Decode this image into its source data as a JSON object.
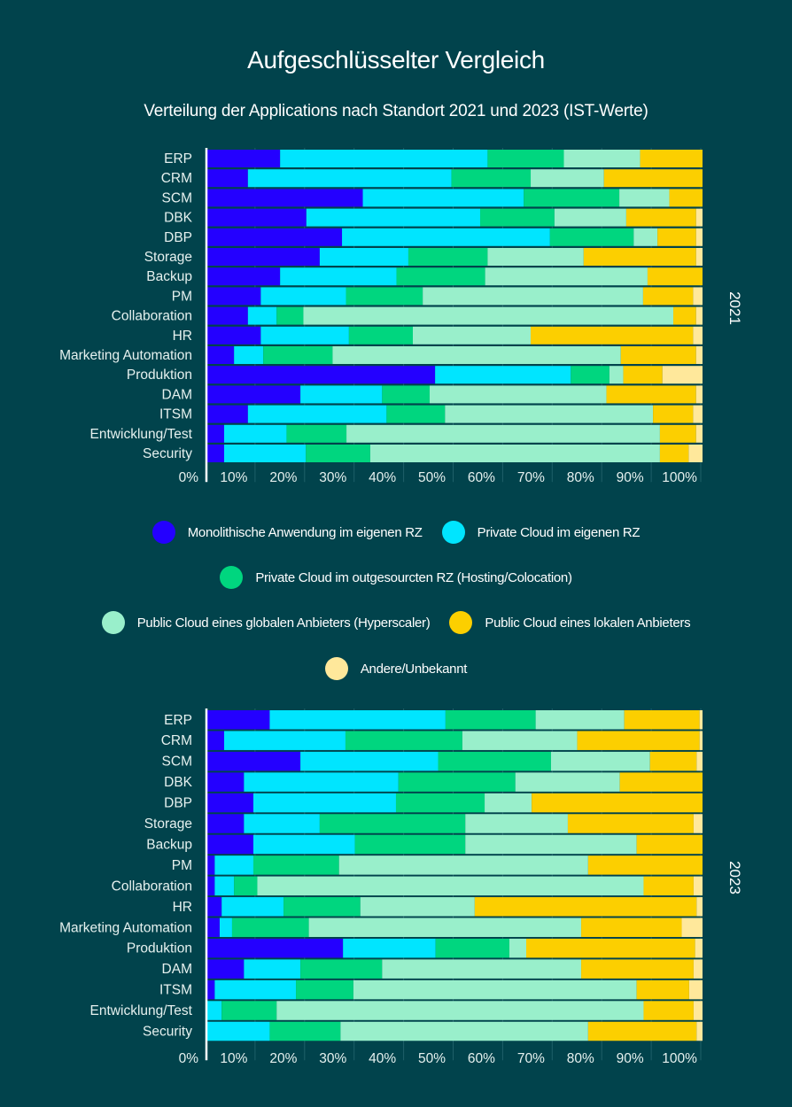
{
  "header": {
    "title": "Aufgeschlüsselter Vergleich",
    "subtitle": "Verteilung der Applications nach Standort 2021 und 2023 (IST-Werte)"
  },
  "colors": {
    "Monolithische Anwendung im eigenen RZ": "#2400ff",
    "Private Cloud im eigenen RZ": "#00e5ff",
    "Private Cloud im outgesourcten RZ (Hosting/Colocation)": "#00d67f",
    "Public Cloud eines globalen Anbieters (Hyperscaler)": "#99efcb",
    "Public Cloud eines lokalen Anbieters": "#fccf00",
    "Andere/Unbekannt": "#ffe89b"
  },
  "legend": {
    "rows": [
      [
        "Monolithische Anwendung im eigenen RZ",
        "Private Cloud im eigenen RZ"
      ],
      [
        "Private Cloud im outgesourcten RZ (Hosting/Colocation)"
      ],
      [
        "Public Cloud eines globalen Anbieters (Hyperscaler)",
        "Public Cloud eines lokalen Anbieters"
      ],
      [
        "Andere/Unbekannt"
      ]
    ]
  },
  "chart_data": [
    {
      "type": "bar",
      "orientation": "horizontal",
      "stacked": true,
      "title": "2021",
      "year_label": "2021",
      "xlabel": "",
      "ylabel": "",
      "xlim": [
        0,
        100
      ],
      "x_unit": "%",
      "tick_labels": [
        "0%",
        "10%",
        "20%",
        "30%",
        "40%",
        "50%",
        "60%",
        "70%",
        "80%",
        "90%",
        "100%"
      ],
      "grid": true,
      "categories": [
        "ERP",
        "CRM",
        "SCM",
        "DBK",
        "DBP",
        "Storage",
        "Backup",
        "PM",
        "Collaboration",
        "HR",
        "Marketing Automation",
        "Produktion",
        "DAM",
        "ITSM",
        "Entwicklung/Test",
        "Security"
      ],
      "series": [
        {
          "name": "Monolithische Anwendung im eigenen RZ",
          "values": [
            14.7,
            8.2,
            31.4,
            20.0,
            27.2,
            22.7,
            14.7,
            10.8,
            8.2,
            10.8,
            5.4,
            46.0,
            18.8,
            8.2,
            3.4,
            3.4
          ]
        },
        {
          "name": "Private Cloud im eigenen RZ",
          "values": [
            41.9,
            41.1,
            32.5,
            35.1,
            42.0,
            17.9,
            23.5,
            17.2,
            5.8,
            17.8,
            5.9,
            27.4,
            16.5,
            28.0,
            12.6,
            16.5
          ]
        },
        {
          "name": "Private Cloud im outgesourcten RZ (Hosting/Colocation)",
          "values": [
            15.4,
            16.0,
            19.3,
            15.0,
            16.9,
            16.0,
            17.9,
            15.5,
            5.4,
            12.9,
            14.0,
            7.8,
            9.6,
            11.8,
            12.1,
            13.0
          ]
        },
        {
          "name": "Public Cloud eines globalen Anbieters (Hyperscaler)",
          "values": [
            15.4,
            14.8,
            10.1,
            14.5,
            4.8,
            19.4,
            32.8,
            44.5,
            74.7,
            23.8,
            58.2,
            2.8,
            35.7,
            42.0,
            63.3,
            58.5
          ]
        },
        {
          "name": "Public Cloud eines lokalen Anbieters",
          "values": [
            12.6,
            19.9,
            6.7,
            14.1,
            7.8,
            22.7,
            11.1,
            10.1,
            4.6,
            32.8,
            15.2,
            7.9,
            18.1,
            8.1,
            7.3,
            5.8
          ]
        },
        {
          "name": "Andere/Unbekannt",
          "values": [
            0.0,
            0.0,
            0.0,
            1.3,
            1.3,
            1.3,
            0.0,
            1.9,
            1.3,
            1.9,
            1.3,
            8.1,
            1.3,
            1.9,
            1.3,
            2.8
          ]
        }
      ]
    },
    {
      "type": "bar",
      "orientation": "horizontal",
      "stacked": true,
      "title": "2023",
      "year_label": "2023",
      "xlabel": "",
      "ylabel": "",
      "xlim": [
        0,
        100
      ],
      "x_unit": "%",
      "tick_labels": [
        "0%",
        "10%",
        "20%",
        "30%",
        "40%",
        "50%",
        "60%",
        "70%",
        "80%",
        "90%",
        "100%"
      ],
      "grid": true,
      "categories": [
        "ERP",
        "CRM",
        "SCM",
        "DBK",
        "DBP",
        "Storage",
        "Backup",
        "PM",
        "Collaboration",
        "HR",
        "Marketing Automation",
        "Produktion",
        "DAM",
        "ITSM",
        "Entwicklung/Test",
        "Security"
      ],
      "series": [
        {
          "name": "Monolithische Anwendung im eigenen RZ",
          "values": [
            12.6,
            3.4,
            18.8,
            7.4,
            9.3,
            7.4,
            9.3,
            1.5,
            1.5,
            2.9,
            2.5,
            27.4,
            7.4,
            1.5,
            0.0,
            0.0
          ]
        },
        {
          "name": "Private Cloud im eigenen RZ",
          "values": [
            35.5,
            24.5,
            27.8,
            31.2,
            28.8,
            15.3,
            20.5,
            7.8,
            3.9,
            12.5,
            2.5,
            18.7,
            11.4,
            16.4,
            2.9,
            12.6
          ]
        },
        {
          "name": "Private Cloud im outgesourcten RZ (Hosting/Colocation)",
          "values": [
            18.2,
            23.6,
            22.8,
            23.6,
            17.9,
            29.4,
            22.3,
            17.3,
            4.7,
            15.5,
            15.5,
            14.9,
            16.5,
            11.6,
            11.1,
            14.3
          ]
        },
        {
          "name": "Public Cloud eines globalen Anbieters (Hyperscaler)",
          "values": [
            17.9,
            23.2,
            20.0,
            21.1,
            9.5,
            20.7,
            34.6,
            50.3,
            78.0,
            23.1,
            55.0,
            3.4,
            40.2,
            57.2,
            74.1,
            50.0
          ]
        },
        {
          "name": "Public Cloud eines lokalen Anbieters",
          "values": [
            15.2,
            24.7,
            9.4,
            16.7,
            34.5,
            25.4,
            13.3,
            23.1,
            10.1,
            44.8,
            20.3,
            34.1,
            22.7,
            10.6,
            10.1,
            21.9
          ]
        },
        {
          "name": "Andere/Unbekannt",
          "values": [
            0.6,
            0.6,
            1.2,
            0.0,
            0.0,
            1.8,
            0.0,
            0.0,
            1.8,
            1.2,
            4.2,
            1.5,
            1.8,
            2.7,
            1.8,
            1.2
          ]
        }
      ]
    }
  ]
}
